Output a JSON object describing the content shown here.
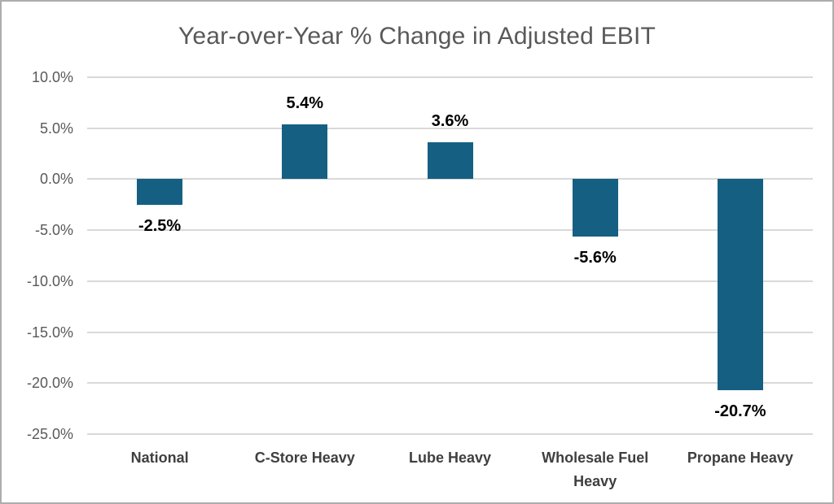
{
  "chart_data": {
    "type": "bar",
    "title": "Year-over-Year % Change in Adjusted EBIT",
    "categories": [
      "National",
      "C-Store Heavy",
      "Lube Heavy",
      "Wholesale Fuel Heavy",
      "Propane Heavy"
    ],
    "values": [
      -2.5,
      5.4,
      3.6,
      -5.6,
      -20.7
    ],
    "data_labels": [
      "-2.5%",
      "5.4%",
      "3.6%",
      "-5.6%",
      "-20.7%"
    ],
    "xlabel": "",
    "ylabel": "",
    "ylim": [
      -25,
      10
    ],
    "ytick_step": 5,
    "yticks": [
      "10.0%",
      "5.0%",
      "0.0%",
      "-5.0%",
      "-10.0%",
      "-15.0%",
      "-20.0%",
      "-25.0%"
    ],
    "grid": true,
    "legend": "none",
    "colors": {
      "bar": "#156082",
      "gridline": "#D9D9D9",
      "title_text": "#595959",
      "axis_tick_text": "#595959",
      "category_text": "#3F3F3F",
      "data_label_text": "#000000",
      "frame_border": "#ADADAD",
      "background": "#FFFFFF"
    }
  }
}
